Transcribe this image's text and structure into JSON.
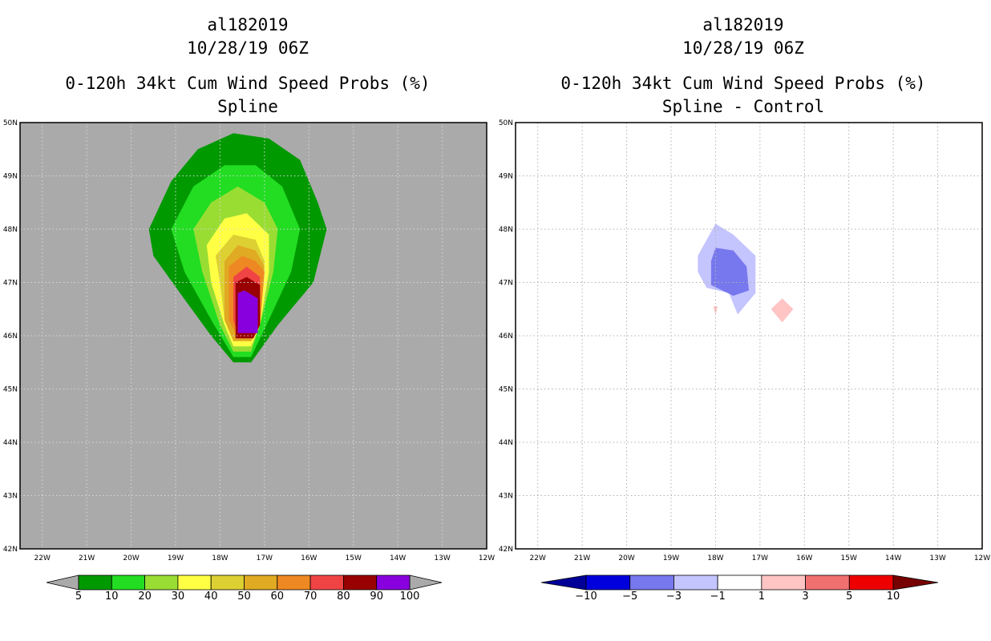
{
  "left_panel": {
    "storm_id": "al182019",
    "date": "10/28/19 06Z",
    "title": "0-120h 34kt Cum Wind Speed Probs (%)",
    "subtitle": "Spline"
  },
  "right_panel": {
    "storm_id": "al182019",
    "date": "10/28/19 06Z",
    "title": "0-120h 34kt Cum Wind Speed Probs (%)",
    "subtitle": "Spline - Control"
  },
  "chart_data": [
    {
      "type": "heatmap",
      "name": "Spline",
      "title": "0-120h 34kt Cum Wind Speed Probs (%)",
      "xlim": [
        -22.5,
        -12
      ],
      "ylim": [
        42,
        50
      ],
      "x_ticks": [
        "22W",
        "21W",
        "20W",
        "19W",
        "18W",
        "17W",
        "16W",
        "15W",
        "14W",
        "13W",
        "12W"
      ],
      "y_ticks": [
        "42N",
        "43N",
        "44N",
        "45N",
        "46N",
        "47N",
        "48N",
        "49N",
        "50N"
      ],
      "background_color": "#aaaaaa",
      "grid": true,
      "colorbar": {
        "levels": [
          "5",
          "10",
          "20",
          "30",
          "40",
          "50",
          "60",
          "70",
          "80",
          "90",
          "100"
        ],
        "colors": [
          "#009900",
          "#22dd22",
          "#99dd33",
          "#ffff44",
          "#ddd033",
          "#e0aa22",
          "#ee8822",
          "#f04444",
          "#990000",
          "#8800dd"
        ],
        "extend_color": "#aaaaaa"
      },
      "contours": [
        {
          "level": 5,
          "color": "#009900",
          "points": [
            [
              -19.6,
              48.0
            ],
            [
              -19.1,
              48.9
            ],
            [
              -18.5,
              49.5
            ],
            [
              -17.7,
              49.8
            ],
            [
              -16.9,
              49.7
            ],
            [
              -16.2,
              49.3
            ],
            [
              -15.8,
              48.5
            ],
            [
              -15.6,
              48.0
            ],
            [
              -15.9,
              47.0
            ],
            [
              -16.7,
              46.2
            ],
            [
              -17.3,
              45.5
            ],
            [
              -17.7,
              45.5
            ],
            [
              -18.2,
              46.0
            ],
            [
              -18.9,
              46.8
            ],
            [
              -19.5,
              47.5
            ]
          ]
        },
        {
          "level": 10,
          "color": "#22dd22",
          "points": [
            [
              -19.1,
              48.0
            ],
            [
              -18.6,
              48.8
            ],
            [
              -17.9,
              49.2
            ],
            [
              -17.2,
              49.2
            ],
            [
              -16.6,
              48.8
            ],
            [
              -16.2,
              48.0
            ],
            [
              -16.4,
              47.2
            ],
            [
              -16.9,
              46.3
            ],
            [
              -17.3,
              45.6
            ],
            [
              -17.7,
              45.6
            ],
            [
              -18.2,
              46.3
            ],
            [
              -18.8,
              47.2
            ]
          ]
        },
        {
          "level": 20,
          "color": "#99dd33",
          "points": [
            [
              -18.6,
              48.0
            ],
            [
              -18.2,
              48.5
            ],
            [
              -17.6,
              48.8
            ],
            [
              -17.0,
              48.5
            ],
            [
              -16.7,
              48.0
            ],
            [
              -16.8,
              47.2
            ],
            [
              -17.1,
              46.2
            ],
            [
              -17.3,
              45.7
            ],
            [
              -17.7,
              45.7
            ],
            [
              -18.0,
              46.2
            ],
            [
              -18.4,
              47.2
            ]
          ]
        },
        {
          "level": 30,
          "color": "#ffff44",
          "points": [
            [
              -18.3,
              47.7
            ],
            [
              -17.9,
              48.2
            ],
            [
              -17.4,
              48.3
            ],
            [
              -16.9,
              47.9
            ],
            [
              -16.9,
              47.2
            ],
            [
              -17.1,
              46.2
            ],
            [
              -17.3,
              45.8
            ],
            [
              -17.7,
              45.8
            ],
            [
              -17.9,
              46.2
            ],
            [
              -18.2,
              47.0
            ]
          ]
        },
        {
          "level": 40,
          "color": "#ddd033",
          "points": [
            [
              -18.1,
              47.5
            ],
            [
              -17.7,
              47.9
            ],
            [
              -17.2,
              47.8
            ],
            [
              -17.0,
              47.4
            ],
            [
              -17.1,
              46.2
            ],
            [
              -17.3,
              45.9
            ],
            [
              -17.7,
              45.9
            ],
            [
              -17.9,
              46.3
            ],
            [
              -18.0,
              47.0
            ]
          ]
        },
        {
          "level": 50,
          "color": "#e0aa22",
          "points": [
            [
              -17.9,
              47.4
            ],
            [
              -17.6,
              47.7
            ],
            [
              -17.2,
              47.6
            ],
            [
              -17.0,
              47.3
            ],
            [
              -17.1,
              46.2
            ],
            [
              -17.3,
              45.9
            ],
            [
              -17.7,
              45.9
            ],
            [
              -17.9,
              46.3
            ]
          ]
        },
        {
          "level": 60,
          "color": "#ee8822",
          "points": [
            [
              -17.8,
              47.3
            ],
            [
              -17.5,
              47.5
            ],
            [
              -17.2,
              47.4
            ],
            [
              -17.0,
              47.2
            ],
            [
              -17.1,
              46.2
            ],
            [
              -17.3,
              45.95
            ],
            [
              -17.6,
              45.95
            ],
            [
              -17.8,
              46.3
            ]
          ]
        },
        {
          "level": 70,
          "color": "#f04444",
          "points": [
            [
              -17.7,
              47.1
            ],
            [
              -17.4,
              47.3
            ],
            [
              -17.1,
              47.1
            ],
            [
              -17.1,
              46.2
            ],
            [
              -17.3,
              46.0
            ],
            [
              -17.6,
              46.0
            ],
            [
              -17.7,
              46.3
            ]
          ]
        },
        {
          "level": 80,
          "color": "#990000",
          "points": [
            [
              -17.65,
              47.0
            ],
            [
              -17.4,
              47.1
            ],
            [
              -17.1,
              46.95
            ],
            [
              -17.1,
              46.2
            ],
            [
              -17.25,
              45.95
            ],
            [
              -17.65,
              45.95
            ]
          ]
        },
        {
          "level": 90,
          "color": "#8800dd",
          "points": [
            [
              -17.6,
              46.8
            ],
            [
              -17.45,
              46.85
            ],
            [
              -17.15,
              46.7
            ],
            [
              -17.15,
              46.05
            ],
            [
              -17.6,
              46.05
            ]
          ]
        }
      ]
    },
    {
      "type": "heatmap",
      "name": "Spline - Control",
      "title": "0-120h 34kt Cum Wind Speed Probs (%)",
      "xlim": [
        -22.5,
        -12
      ],
      "ylim": [
        42,
        50
      ],
      "x_ticks": [
        "22W",
        "21W",
        "20W",
        "19W",
        "18W",
        "17W",
        "16W",
        "15W",
        "14W",
        "13W",
        "12W"
      ],
      "y_ticks": [
        "42N",
        "43N",
        "44N",
        "45N",
        "46N",
        "47N",
        "48N",
        "49N",
        "50N"
      ],
      "background_color": "#ffffff",
      "grid": true,
      "colorbar": {
        "levels": [
          "-10",
          "-5",
          "-3",
          "-1",
          "1",
          "3",
          "5",
          "10"
        ],
        "colors": [
          "#0000dd",
          "#7777ee",
          "#c4c4ff",
          "#ffffff",
          "#ffc4c4",
          "#f07070",
          "#ee0000"
        ],
        "low_extend_color": "#000099",
        "high_extend_color": "#770000"
      },
      "contours": [
        {
          "level": -1,
          "color": "#c4c4ff",
          "points": [
            [
              -18.4,
              47.5
            ],
            [
              -18.0,
              48.1
            ],
            [
              -17.6,
              47.9
            ],
            [
              -17.1,
              47.5
            ],
            [
              -17.1,
              46.8
            ],
            [
              -17.5,
              46.4
            ],
            [
              -17.7,
              46.8
            ],
            [
              -18.2,
              46.9
            ],
            [
              -18.4,
              47.2
            ]
          ]
        },
        {
          "level": -3,
          "color": "#7777ee",
          "points": [
            [
              -18.1,
              47.4
            ],
            [
              -18.0,
              47.65
            ],
            [
              -17.6,
              47.6
            ],
            [
              -17.3,
              47.3
            ],
            [
              -17.25,
              46.85
            ],
            [
              -17.6,
              46.75
            ],
            [
              -18.1,
              46.95
            ]
          ]
        },
        {
          "level": 1,
          "color": "#ffc4c4",
          "points": [
            [
              -16.5,
              46.7
            ],
            [
              -16.25,
              46.5
            ],
            [
              -16.5,
              46.25
            ],
            [
              -16.75,
              46.5
            ]
          ]
        },
        {
          "level": 1,
          "color": "#ffc4c4",
          "points": [
            [
              -18.05,
              46.55
            ],
            [
              -17.95,
              46.55
            ],
            [
              -18.0,
              46.4
            ]
          ]
        }
      ]
    }
  ]
}
